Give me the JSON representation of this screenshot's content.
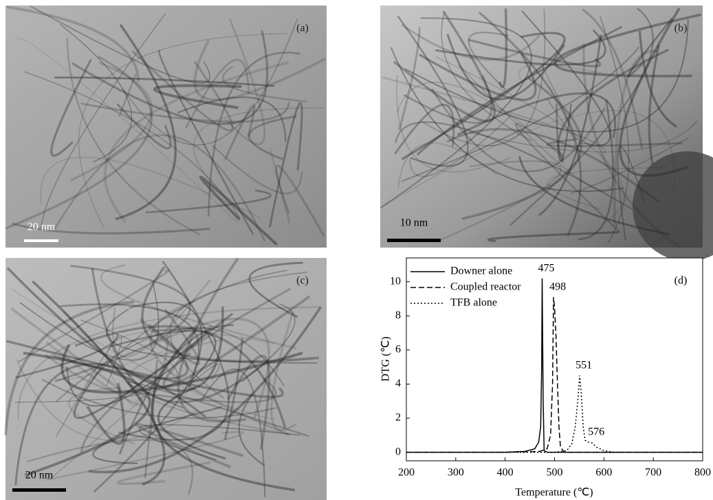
{
  "panels": [
    {
      "label": "(a)",
      "scale_bar": "20 nm"
    },
    {
      "label": "(b)",
      "scale_bar": "10 nm"
    },
    {
      "label": "(c)",
      "scale_bar": "20 nm"
    }
  ],
  "chart_data": {
    "type": "line",
    "panel_label": "(d)",
    "x_label": "Temperature (℃)",
    "y_label": "DTG (℃)",
    "xlim": [
      200,
      800
    ],
    "ylim": [
      -0.5,
      11.4
    ],
    "xticks": [
      200,
      300,
      400,
      500,
      600,
      700,
      800
    ],
    "yticks": [
      0,
      2,
      4,
      6,
      8,
      10
    ],
    "legend": "top-left",
    "series": [
      {
        "name": "Downer alone",
        "color": "#000000",
        "dash": "solid",
        "x": [
          200,
          300,
          400,
          440,
          460,
          468,
          472,
          474,
          475,
          477,
          479,
          485,
          600,
          800
        ],
        "values": [
          0,
          0,
          0,
          0.05,
          0.2,
          0.6,
          1.5,
          5,
          10.2,
          3,
          0.1,
          0,
          0,
          0
        ]
      },
      {
        "name": "Coupled reactor",
        "color": "#000000",
        "dash": "dashed",
        "x": [
          200,
          400,
          470,
          485,
          492,
          496,
          498,
          500,
          503,
          506,
          509,
          512,
          520,
          800
        ],
        "values": [
          0,
          0,
          0.05,
          0.2,
          1,
          4,
          9.1,
          8.5,
          6.8,
          4,
          1.5,
          0.3,
          0,
          0
        ]
      },
      {
        "name": "TFB alone",
        "color": "#000000",
        "dash": "dotted",
        "x": [
          200,
          500,
          525,
          535,
          542,
          547,
          551,
          554,
          558,
          562,
          568,
          576,
          585,
          600,
          620,
          800
        ],
        "values": [
          0,
          0,
          0.1,
          0.5,
          1.5,
          3,
          4.5,
          3.5,
          1.5,
          0.7,
          0.6,
          0.55,
          0.3,
          0.1,
          0,
          0
        ]
      }
    ],
    "annotations": [
      {
        "text": "475",
        "x": 475,
        "y": 10.2
      },
      {
        "text": "498",
        "x": 498,
        "y": 9.1
      },
      {
        "text": "551",
        "x": 551,
        "y": 4.5
      },
      {
        "text": "576",
        "x": 576,
        "y": 0.6
      }
    ]
  }
}
